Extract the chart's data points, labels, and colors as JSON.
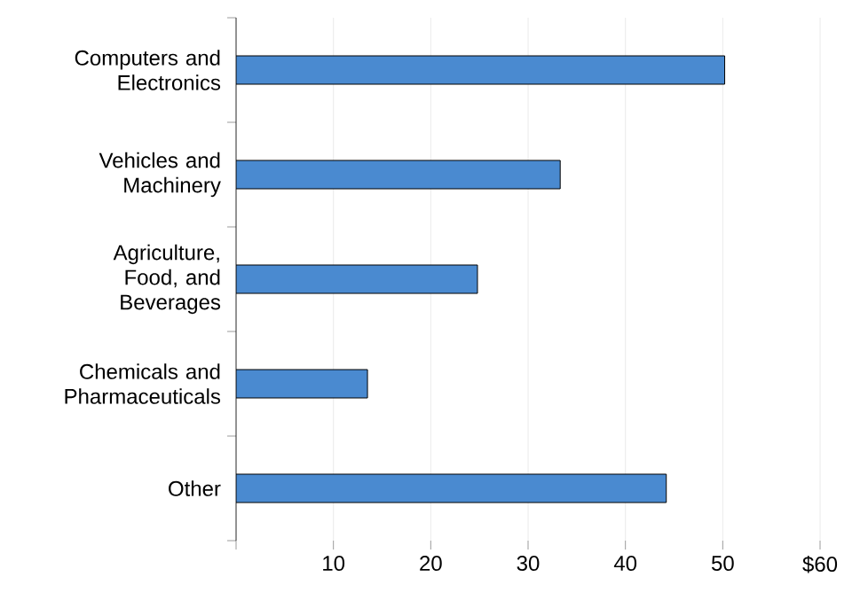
{
  "chart_data": {
    "type": "bar",
    "orientation": "horizontal",
    "categories": [
      "Computers and Electronics",
      "Vehicles and Machinery",
      "Agriculture, Food, and Beverages",
      "Chemicals and Pharmaceuticals",
      "Other"
    ],
    "values": [
      50.2,
      33.3,
      24.8,
      13.5,
      44.2
    ],
    "color": "#4a8ad0",
    "xlim": [
      0,
      60
    ],
    "xticks": [
      {
        "value": 0,
        "label": null
      },
      10,
      20,
      30,
      40,
      50,
      {
        "value": 60,
        "label": "$60"
      }
    ],
    "grid": "x"
  }
}
